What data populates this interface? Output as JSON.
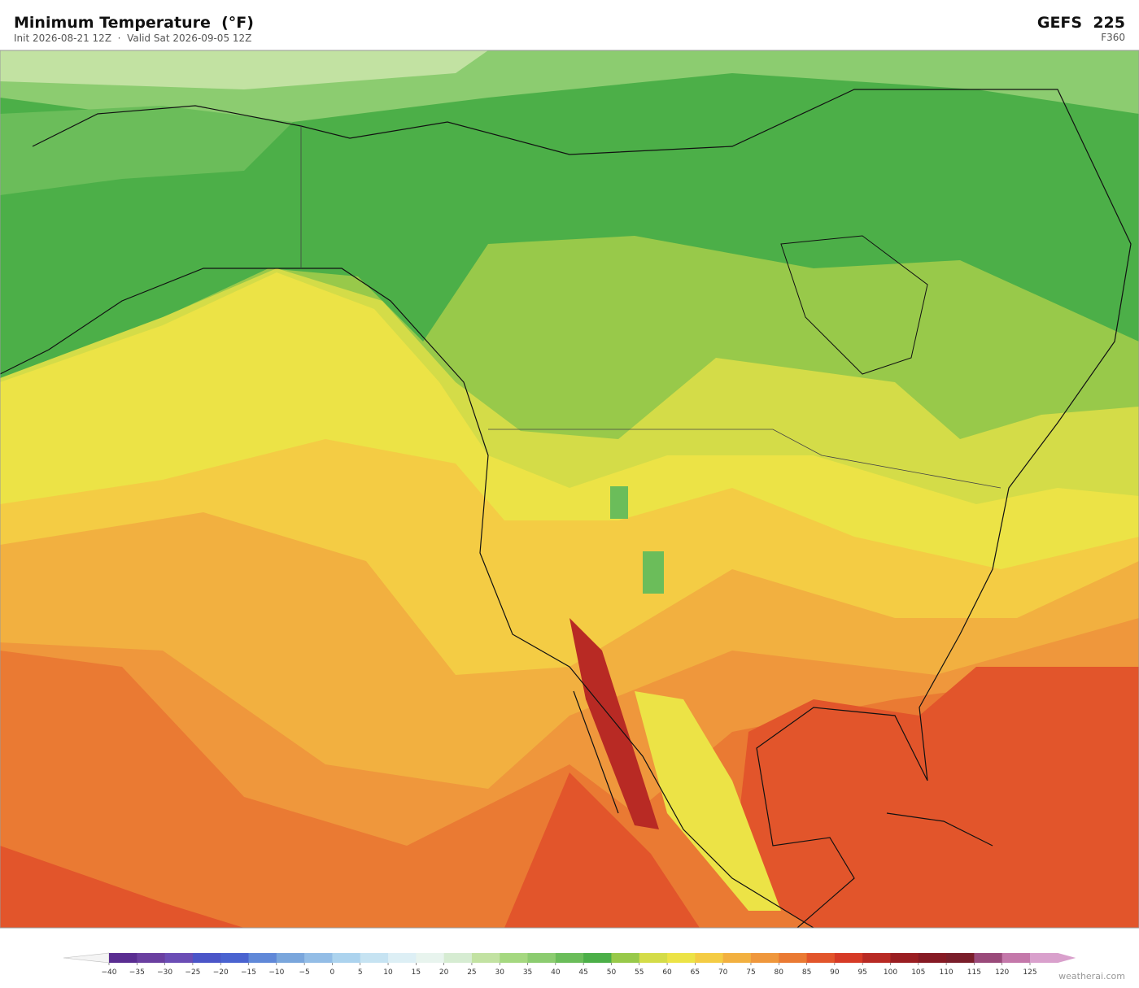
{
  "header": {
    "title": "Minimum Temperature  (°F)",
    "subtitle": "Init 2026-08-21 12Z  ·  Valid Sat 2026-09-05 12Z",
    "model": "GEFS  225",
    "forecast_hour": "F360"
  },
  "colorbar": {
    "ticks": [
      {
        "value": -40,
        "label": "−40"
      },
      {
        "value": -35,
        "label": "−35"
      },
      {
        "value": -30,
        "label": "−30"
      },
      {
        "value": -25,
        "label": "−25"
      },
      {
        "value": -20,
        "label": "−20"
      },
      {
        "value": -15,
        "label": "−15"
      },
      {
        "value": -10,
        "label": "−10"
      },
      {
        "value": -5,
        "label": "−5"
      },
      0,
      5,
      10,
      15,
      20,
      25,
      30,
      35,
      40,
      45,
      50,
      55,
      60,
      65,
      70,
      75,
      80,
      85,
      90,
      95,
      100,
      105,
      110,
      115,
      120,
      125
    ],
    "colors": [
      "#5a2d91",
      "#6a3fa0",
      "#6b4db5",
      "#4b55c8",
      "#4a63d0",
      "#6088d8",
      "#7aa6dc",
      "#93bde6",
      "#acd3ee",
      "#c6e3f2",
      "#ddeff5",
      "#e8f4ee",
      "#d6ecd2",
      "#c2e2a2",
      "#a5d880",
      "#8ccc70",
      "#6bbd5a",
      "#4caf48",
      "#98c94a",
      "#d4dc48",
      "#ece346",
      "#f4cc44",
      "#f2b040",
      "#ef973c",
      "#ea7a33",
      "#e2552b",
      "#d63a26",
      "#b82a24",
      "#9a1e22",
      "#861a24",
      "#7a1e2a",
      "#9a4a7a",
      "#c478aa",
      "#d9a0cc"
    ]
  },
  "footer": {
    "credit": "weatherai.com"
  }
}
